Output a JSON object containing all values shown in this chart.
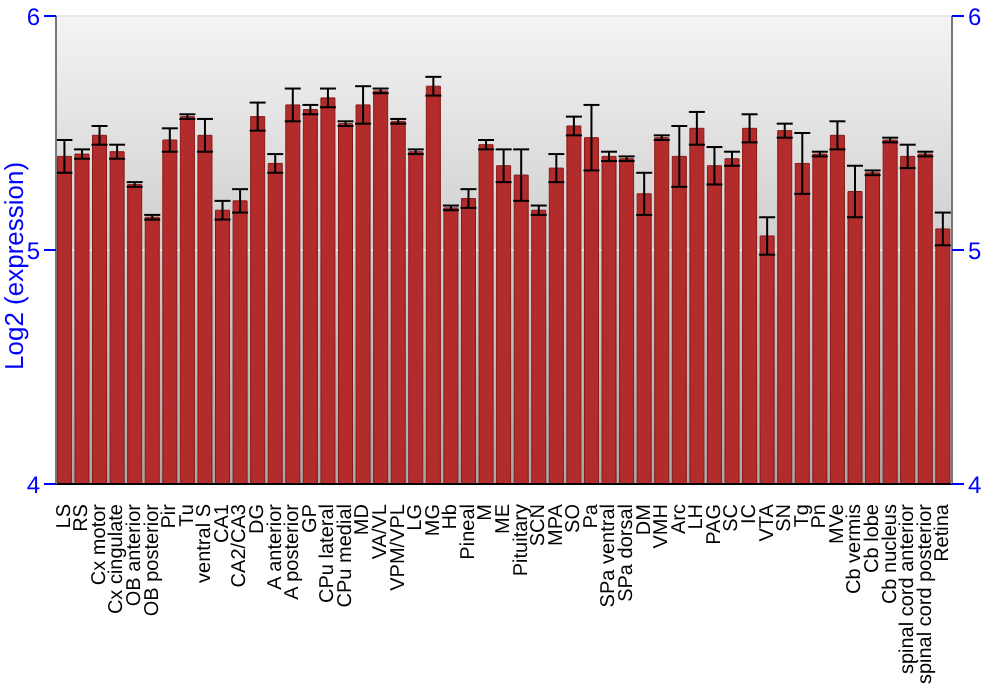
{
  "chart_data": {
    "type": "bar",
    "ylabel": "Log2 (expression)",
    "categories": [
      "LS",
      "RS",
      "Cx motor",
      "Cx cingulate",
      "OB anterior",
      "OB posterior",
      "Pir",
      "Tu",
      "ventral S",
      "CA1",
      "CA2/CA3",
      "DG",
      "A anterior",
      "A posterior",
      "GP",
      "CPu lateral",
      "CPu medial",
      "MD",
      "VA/VL",
      "VPM/VPL",
      "LG",
      "MG",
      "Hb",
      "Pineal",
      "M",
      "ME",
      "Pituitary",
      "SCN",
      "MPA",
      "SO",
      "Pa",
      "SPa ventral",
      "SPa dorsal",
      "DM",
      "VMH",
      "Arc",
      "LH",
      "PAG",
      "SC",
      "IC",
      "VTA",
      "SN",
      "Tg",
      "Pn",
      "MVe",
      "Cb vermis",
      "Cb lobe",
      "Cb nucleus",
      "spinal cord anterior",
      "spinal cord posterior",
      "Retina"
    ],
    "values": [
      5.4,
      5.41,
      5.49,
      5.42,
      5.28,
      5.14,
      5.47,
      5.57,
      5.49,
      5.17,
      5.21,
      5.57,
      5.37,
      5.62,
      5.6,
      5.65,
      5.54,
      5.62,
      5.68,
      5.55,
      5.42,
      5.7,
      5.18,
      5.22,
      5.45,
      5.36,
      5.32,
      5.17,
      5.35,
      5.53,
      5.48,
      5.4,
      5.39,
      5.24,
      5.48,
      5.4,
      5.52,
      5.36,
      5.39,
      5.52,
      5.06,
      5.51,
      5.37,
      5.41,
      5.49,
      5.25,
      5.33,
      5.47,
      5.4,
      5.41,
      5.09
    ],
    "errors": [
      0.07,
      0.02,
      0.04,
      0.03,
      0.01,
      0.01,
      0.05,
      0.01,
      0.07,
      0.04,
      0.05,
      0.06,
      0.04,
      0.07,
      0.02,
      0.04,
      0.01,
      0.08,
      0.01,
      0.01,
      0.01,
      0.04,
      0.01,
      0.04,
      0.02,
      0.07,
      0.11,
      0.02,
      0.06,
      0.04,
      0.14,
      0.02,
      0.01,
      0.09,
      0.01,
      0.13,
      0.07,
      0.08,
      0.03,
      0.06,
      0.08,
      0.03,
      0.13,
      0.01,
      0.06,
      0.11,
      0.01,
      0.01,
      0.05,
      0.01,
      0.07
    ],
    "color": "#b22c2c",
    "ylim": [
      4,
      6
    ],
    "yticks": [
      4,
      5,
      6
    ],
    "y2lim": [
      4,
      6
    ],
    "y2ticks": [
      4,
      5,
      6
    ],
    "grid": "y"
  }
}
